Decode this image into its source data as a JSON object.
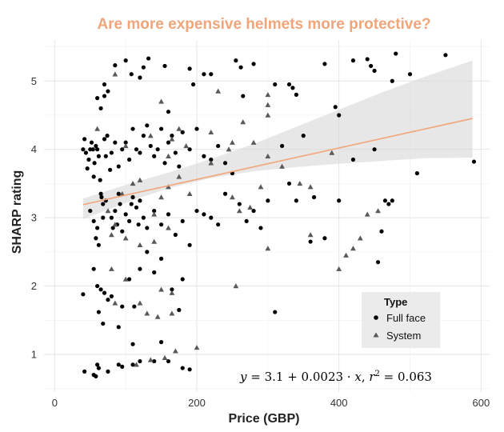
{
  "chart_data": {
    "type": "scatter",
    "title": "Are more expensive helmets more protective?",
    "title_color": "#F0A57A",
    "xlabel": "Price (GBP)",
    "ylabel": "SHARP rating",
    "xlim": [
      -15,
      612
    ],
    "ylim": [
      0.45,
      5.6
    ],
    "x_ticks": [
      0,
      200,
      400,
      600
    ],
    "y_ticks": [
      1,
      2,
      3,
      4,
      5
    ],
    "grid": true,
    "legend": {
      "title": "Type",
      "placement": "bottom-right",
      "entries": [
        {
          "label": "Full face",
          "shape": "circle"
        },
        {
          "label": "System",
          "shape": "triangle"
        }
      ]
    },
    "fit": {
      "intercept": 3.1,
      "slope": 0.0023,
      "r2": 0.063,
      "x_range": [
        40,
        588
      ],
      "line_color": "#F0A57A",
      "band_color": "#D9D9D9",
      "band": [
        [
          40,
          3.28,
          2.98
        ],
        [
          100,
          3.48,
          3.22
        ],
        [
          160,
          3.66,
          3.43
        ],
        [
          220,
          3.86,
          3.58
        ],
        [
          280,
          4.08,
          3.68
        ],
        [
          340,
          4.33,
          3.74
        ],
        [
          400,
          4.58,
          3.79
        ],
        [
          460,
          4.83,
          3.83
        ],
        [
          520,
          5.06,
          3.87
        ],
        [
          588,
          5.3,
          3.88
        ]
      ],
      "equation": {
        "y": "y",
        "eq": " = 3.1 + 0.0023 · ",
        "x": "x",
        "r": "r",
        "exp": "2",
        "r2val": " = 0.063"
      }
    },
    "series": [
      {
        "name": "Full face",
        "shape": "circle",
        "color": "#000000",
        "points": [
          [
            40,
            4.0
          ],
          [
            42,
            4.15
          ],
          [
            44,
            3.95
          ],
          [
            46,
            3.72
          ],
          [
            48,
            3.85
          ],
          [
            50,
            4.0
          ],
          [
            52,
            4.1
          ],
          [
            54,
            4.0
          ],
          [
            55,
            3.6
          ],
          [
            56,
            3.8
          ],
          [
            58,
            4.05
          ],
          [
            60,
            4.0
          ],
          [
            62,
            3.9
          ],
          [
            64,
            3.55
          ],
          [
            66,
            3.3
          ],
          [
            68,
            3.0
          ],
          [
            70,
            4.15
          ],
          [
            72,
            3.9
          ],
          [
            74,
            4.2
          ],
          [
            78,
            3.7
          ],
          [
            80,
            3.95
          ],
          [
            85,
            4.1
          ],
          [
            90,
            3.75
          ],
          [
            95,
            4.0
          ],
          [
            100,
            4.1
          ],
          [
            105,
            3.85
          ],
          [
            110,
            4.3
          ],
          [
            115,
            4.0
          ],
          [
            120,
            3.95
          ],
          [
            125,
            4.2
          ],
          [
            130,
            4.35
          ],
          [
            135,
            4.05
          ],
          [
            140,
            3.9
          ],
          [
            145,
            4.0
          ],
          [
            150,
            4.3
          ],
          [
            155,
            3.8
          ],
          [
            160,
            4.1
          ],
          [
            165,
            4.2
          ],
          [
            170,
            3.95
          ],
          [
            175,
            3.75
          ],
          [
            180,
            4.25
          ],
          [
            190,
            4.0
          ],
          [
            200,
            4.3
          ],
          [
            210,
            3.9
          ],
          [
            220,
            3.85
          ],
          [
            230,
            4.05
          ],
          [
            240,
            3.8
          ],
          [
            250,
            3.65
          ],
          [
            60,
            4.75
          ],
          [
            65,
            4.6
          ],
          [
            70,
            4.95
          ],
          [
            70,
            4.78
          ],
          [
            72,
            3.25
          ],
          [
            75,
            4.85
          ],
          [
            80,
            3.0
          ],
          [
            82,
            2.85
          ],
          [
            85,
            3.1
          ],
          [
            88,
            2.9
          ],
          [
            90,
            3.35
          ],
          [
            92,
            3.2
          ],
          [
            95,
            2.8
          ],
          [
            100,
            3.05
          ],
          [
            105,
            2.95
          ],
          [
            108,
            3.2
          ],
          [
            110,
            3.3
          ],
          [
            115,
            3.15
          ],
          [
            118,
            2.9
          ],
          [
            120,
            3.25
          ],
          [
            125,
            3.0
          ],
          [
            130,
            2.85
          ],
          [
            140,
            3.1
          ],
          [
            150,
            2.9
          ],
          [
            160,
            3.05
          ],
          [
            170,
            2.75
          ],
          [
            180,
            2.95
          ],
          [
            190,
            2.6
          ],
          [
            200,
            3.1
          ],
          [
            210,
            3.05
          ],
          [
            220,
            3.0
          ],
          [
            230,
            2.9
          ],
          [
            240,
            3.35
          ],
          [
            260,
            3.2
          ],
          [
            270,
            2.95
          ],
          [
            280,
            3.1
          ],
          [
            290,
            2.85
          ],
          [
            300,
            3.25
          ],
          [
            50,
            3.1
          ],
          [
            55,
            2.95
          ],
          [
            58,
            2.7
          ],
          [
            60,
            2.85
          ],
          [
            62,
            2.6
          ],
          [
            65,
            3.35
          ],
          [
            68,
            3.2
          ],
          [
            55,
            2.25
          ],
          [
            60,
            2.0
          ],
          [
            62,
            1.62
          ],
          [
            65,
            1.95
          ],
          [
            70,
            1.9
          ],
          [
            75,
            1.8
          ],
          [
            80,
            1.85
          ],
          [
            68,
            1.45
          ],
          [
            90,
            1.4
          ],
          [
            95,
            1.7
          ],
          [
            105,
            2.1
          ],
          [
            110,
            1.15
          ],
          [
            112,
            1.7
          ],
          [
            120,
            2.25
          ],
          [
            130,
            2.5
          ],
          [
            140,
            2.2
          ],
          [
            150,
            2.4
          ],
          [
            165,
            1.95
          ],
          [
            175,
            1.65
          ],
          [
            180,
            2.1
          ],
          [
            40,
            1.88
          ],
          [
            42,
            0.75
          ],
          [
            55,
            0.7
          ],
          [
            58,
            0.68
          ],
          [
            60,
            0.85
          ],
          [
            62,
            0.8
          ],
          [
            75,
            0.75
          ],
          [
            90,
            0.85
          ],
          [
            95,
            0.82
          ],
          [
            110,
            0.85
          ],
          [
            120,
            0.9
          ],
          [
            140,
            0.9
          ],
          [
            160,
            0.9
          ],
          [
            180,
            0.8
          ],
          [
            190,
            0.78
          ],
          [
            150,
            1.18
          ],
          [
            85,
            5.23
          ],
          [
            100,
            5.3
          ],
          [
            108,
            5.1
          ],
          [
            120,
            5.05
          ],
          [
            125,
            5.2
          ],
          [
            132,
            5.33
          ],
          [
            155,
            5.22
          ],
          [
            160,
            4.55
          ],
          [
            190,
            5.18
          ],
          [
            195,
            4.95
          ],
          [
            210,
            5.1
          ],
          [
            220,
            5.1
          ],
          [
            255,
            5.3
          ],
          [
            262,
            5.2
          ],
          [
            265,
            4.78
          ],
          [
            280,
            5.25
          ],
          [
            310,
            4.95
          ],
          [
            330,
            4.95
          ],
          [
            335,
            4.9
          ],
          [
            340,
            4.8
          ],
          [
            380,
            5.25
          ],
          [
            395,
            4.62
          ],
          [
            420,
            5.3
          ],
          [
            440,
            5.32
          ],
          [
            445,
            5.22
          ],
          [
            450,
            5.15
          ],
          [
            475,
            5.0
          ],
          [
            480,
            5.4
          ],
          [
            500,
            5.1
          ],
          [
            550,
            5.38
          ],
          [
            320,
            4.05
          ],
          [
            330,
            3.5
          ],
          [
            340,
            3.25
          ],
          [
            350,
            4.2
          ],
          [
            365,
            3.3
          ],
          [
            400,
            4.5
          ],
          [
            420,
            3.85
          ],
          [
            450,
            4.0
          ],
          [
            465,
            3.25
          ],
          [
            510,
            3.65
          ],
          [
            590,
            3.82
          ],
          [
            400,
            3.25
          ],
          [
            455,
            2.35
          ],
          [
            460,
            2.8
          ],
          [
            310,
            1.62
          ],
          [
            360,
            2.65
          ],
          [
            380,
            2.7
          ],
          [
            470,
            3.2
          ],
          [
            475,
            3.25
          ]
        ]
      },
      {
        "name": "System",
        "shape": "triangle",
        "color": "#595959",
        "points": [
          [
            60,
            4.3
          ],
          [
            85,
            5.1
          ],
          [
            100,
            4.05
          ],
          [
            110,
            3.5
          ],
          [
            120,
            3.55
          ],
          [
            135,
            4.2
          ],
          [
            150,
            4.7
          ],
          [
            160,
            3.9
          ],
          [
            165,
            4.15
          ],
          [
            175,
            4.3
          ],
          [
            185,
            4.05
          ],
          [
            220,
            4.25
          ],
          [
            230,
            4.85
          ],
          [
            245,
            4.0
          ],
          [
            250,
            4.1
          ],
          [
            265,
            4.4
          ],
          [
            280,
            4.1
          ],
          [
            300,
            4.8
          ],
          [
            300,
            4.65
          ],
          [
            300,
            4.5
          ],
          [
            300,
            3.9
          ],
          [
            160,
            3.45
          ],
          [
            175,
            3.6
          ],
          [
            190,
            3.35
          ],
          [
            220,
            3.8
          ],
          [
            250,
            3.3
          ],
          [
            260,
            3.1
          ],
          [
            275,
            3.15
          ],
          [
            290,
            3.45
          ],
          [
            320,
            3.75
          ],
          [
            345,
            3.5
          ],
          [
            360,
            3.45
          ],
          [
            390,
            3.95
          ],
          [
            95,
            3.35
          ],
          [
            85,
            2.9
          ],
          [
            140,
            3.05
          ],
          [
            100,
            2.7
          ],
          [
            120,
            2.6
          ],
          [
            80,
            2.75
          ],
          [
            75,
            3.1
          ],
          [
            140,
            2.65
          ],
          [
            150,
            3.3
          ],
          [
            160,
            2.85
          ],
          [
            80,
            2.25
          ],
          [
            100,
            2.1
          ],
          [
            85,
            1.75
          ],
          [
            120,
            1.75
          ],
          [
            145,
            1.55
          ],
          [
            150,
            1.95
          ],
          [
            165,
            1.9
          ],
          [
            130,
            1.6
          ],
          [
            165,
            1.6
          ],
          [
            255,
            2.0
          ],
          [
            135,
            0.92
          ],
          [
            155,
            0.95
          ],
          [
            170,
            1.05
          ],
          [
            115,
            0.85
          ],
          [
            200,
            1.1
          ],
          [
            440,
            3.05
          ],
          [
            420,
            2.55
          ],
          [
            430,
            2.7
          ],
          [
            455,
            3.1
          ],
          [
            410,
            2.45
          ],
          [
            360,
            2.75
          ],
          [
            400,
            2.25
          ],
          [
            300,
            2.55
          ]
        ]
      }
    ]
  }
}
